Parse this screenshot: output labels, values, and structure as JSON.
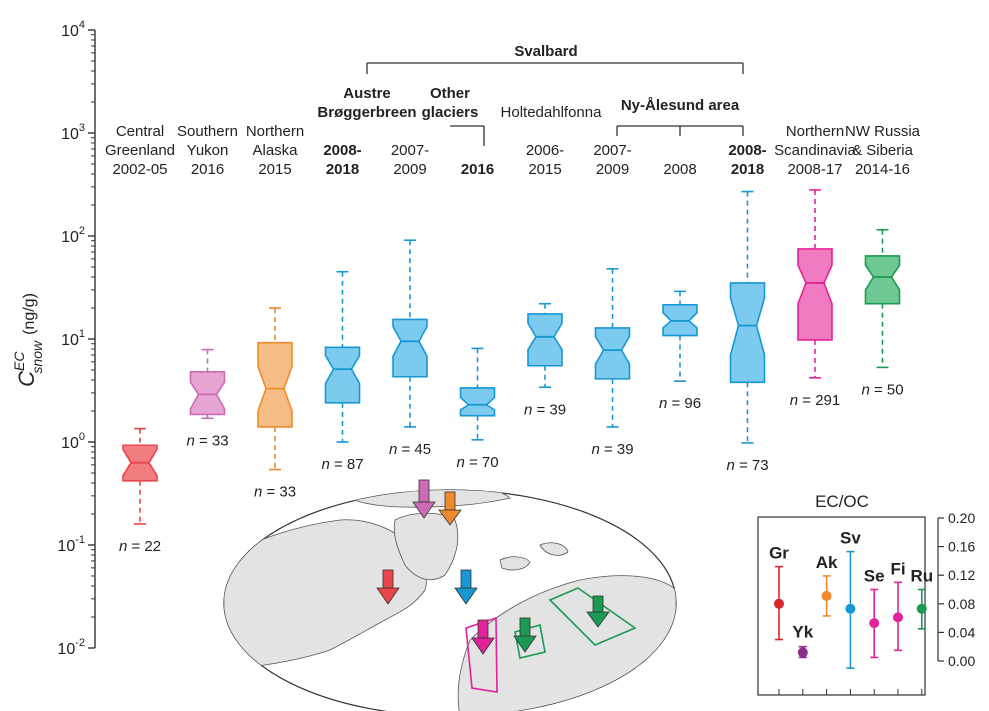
{
  "chart_data": [
    {
      "type": "boxplot",
      "ylabel": "C_snow^EC (ng/g)",
      "ylabel_parts": {
        "base": "C",
        "sup": "EC",
        "sub": "snow",
        "unit": "(ng/g)"
      },
      "yscale": "log",
      "ylim": [
        0.01,
        10000
      ],
      "yticks": [
        {
          "value": 0.01,
          "base": "10",
          "exp": "-2"
        },
        {
          "value": 0.1,
          "base": "10",
          "exp": "-1"
        },
        {
          "value": 1,
          "base": "10",
          "exp": "0"
        },
        {
          "value": 10,
          "base": "10",
          "exp": "1"
        },
        {
          "value": 100,
          "base": "10",
          "exp": "2"
        },
        {
          "value": 1000,
          "base": "10",
          "exp": "3"
        },
        {
          "value": 10000,
          "base": "10",
          "exp": "4"
        }
      ],
      "groups": [
        {
          "label": [
            "Central",
            "Greenland",
            "2002-05"
          ],
          "bold": false,
          "color": "#e8464a",
          "fill": "#f17d80",
          "min": 0.16,
          "q1": 0.42,
          "median": 0.63,
          "q3": 0.93,
          "max": 1.35,
          "notch_lo": 0.47,
          "notch_hi": 0.85,
          "n": "22"
        },
        {
          "label": [
            "Southern",
            "Yukon",
            "2016"
          ],
          "bold": false,
          "color": "#cc6bb3",
          "fill": "#e6a4d4",
          "min": 1.7,
          "q1": 1.85,
          "median": 2.9,
          "q3": 4.8,
          "max": 7.9,
          "notch_lo": 2.1,
          "notch_hi": 3.8,
          "n": "33"
        },
        {
          "label": [
            "Northern",
            "Alaska",
            "2015"
          ],
          "bold": false,
          "color": "#ef8a2c",
          "fill": "#f6bc85",
          "min": 0.54,
          "q1": 1.4,
          "median": 3.3,
          "q3": 9.2,
          "max": 20,
          "notch_lo": 2.0,
          "notch_hi": 5.4,
          "n": "33"
        },
        {
          "label": [
            "2008-",
            "2018"
          ],
          "bold": true,
          "color": "#1797d3",
          "fill": "#7ccbef",
          "min": 1.0,
          "q1": 2.4,
          "median": 5.1,
          "q3": 8.3,
          "max": 45,
          "notch_lo": 3.7,
          "notch_hi": 6.9,
          "n": "87"
        },
        {
          "label": [
            "2007-",
            "2009"
          ],
          "bold": false,
          "color": "#1797d3",
          "fill": "#7ccbef",
          "min": 1.4,
          "q1": 4.3,
          "median": 9.5,
          "q3": 15.5,
          "max": 91,
          "notch_lo": 6.8,
          "notch_hi": 13.2,
          "n": "45"
        },
        {
          "label": [
            "2016"
          ],
          "bold": true,
          "color": "#1797d3",
          "fill": "#7ccbef",
          "min": 1.05,
          "q1": 1.8,
          "median": 2.3,
          "q3": 3.35,
          "max": 8.1,
          "notch_lo": 2.05,
          "notch_hi": 2.7,
          "n": "70"
        },
        {
          "label": [
            "2006-",
            "2015"
          ],
          "bold": false,
          "color": "#1797d3",
          "fill": "#7ccbef",
          "min": 3.4,
          "q1": 5.5,
          "median": 10.5,
          "q3": 17.5,
          "max": 22,
          "notch_lo": 7.9,
          "notch_hi": 14.2,
          "n": "39"
        },
        {
          "label": [
            "2007-",
            "2009"
          ],
          "bold": false,
          "color": "#1797d3",
          "fill": "#7ccbef",
          "min": 1.4,
          "q1": 4.1,
          "median": 7.8,
          "q3": 12.8,
          "max": 48,
          "notch_lo": 5.7,
          "notch_hi": 10.6,
          "n": "39"
        },
        {
          "label": [
            "2008"
          ],
          "bold": false,
          "color": "#1797d3",
          "fill": "#7ccbef",
          "min": 3.9,
          "q1": 10.8,
          "median": 15,
          "q3": 21.5,
          "max": 29,
          "notch_lo": 12.8,
          "notch_hi": 18.0,
          "n": "96"
        },
        {
          "label": [
            "2008-",
            "2018"
          ],
          "bold": true,
          "color": "#1797d3",
          "fill": "#7ccbef",
          "min": 0.98,
          "q1": 3.8,
          "median": 13.5,
          "q3": 35,
          "max": 270,
          "notch_lo": 7.0,
          "notch_hi": 25.0,
          "n": "73"
        },
        {
          "label": [
            "Northern",
            "Scandinavia",
            "2008-17"
          ],
          "bold": false,
          "color": "#e2229a",
          "fill": "#f07bc1",
          "min": 4.2,
          "q1": 9.8,
          "median": 35,
          "q3": 75,
          "max": 280,
          "notch_lo": 22,
          "notch_hi": 52,
          "n": "291"
        },
        {
          "label": [
            "NW Russia",
            "& Siberia",
            "2014-16"
          ],
          "bold": false,
          "color": "#1a9a52",
          "fill": "#6fc893",
          "min": 5.3,
          "q1": 22,
          "median": 40,
          "q3": 64,
          "max": 115,
          "notch_lo": 30,
          "notch_hi": 52,
          "n": "50"
        }
      ],
      "annotations": {
        "svalbard": "Svalbard",
        "austre": [
          "Austre",
          "Brøggerbreen"
        ],
        "other_glaciers": [
          "Other",
          "glaciers"
        ],
        "holtedahl": "Holtedahlfonna",
        "nyalesund": "Ny-Ålesund area"
      }
    },
    {
      "type": "errorbar",
      "title": "EC/OC",
      "ylim": [
        0.0,
        0.2
      ],
      "yticks": [
        "0.00",
        "0.04",
        "0.08",
        "0.12",
        "0.16",
        "0.20"
      ],
      "tick_values": [
        0.0,
        0.04,
        0.08,
        0.12,
        0.16,
        0.2
      ],
      "points": [
        {
          "label": "Gr",
          "color": "#d8242b",
          "value": 0.08,
          "low": 0.03,
          "high": 0.132
        },
        {
          "label": "Yk",
          "color": "#8e2b8c",
          "value": 0.012,
          "low": 0.005,
          "high": 0.02
        },
        {
          "label": "Ak",
          "color": "#ef8a2c",
          "value": 0.091,
          "low": 0.063,
          "high": 0.119
        },
        {
          "label": "Sv",
          "color": "#1797d3",
          "value": 0.073,
          "low": -0.01,
          "high": 0.153
        },
        {
          "label": "Se",
          "color": "#e2229a",
          "value": 0.053,
          "low": 0.005,
          "high": 0.1
        },
        {
          "label": "Fi",
          "color": "#e2229a",
          "value": 0.061,
          "low": 0.015,
          "high": 0.11
        },
        {
          "label": "Ru",
          "color": "#1a9a52",
          "value": 0.073,
          "low": 0.045,
          "high": 0.1
        }
      ]
    }
  ]
}
